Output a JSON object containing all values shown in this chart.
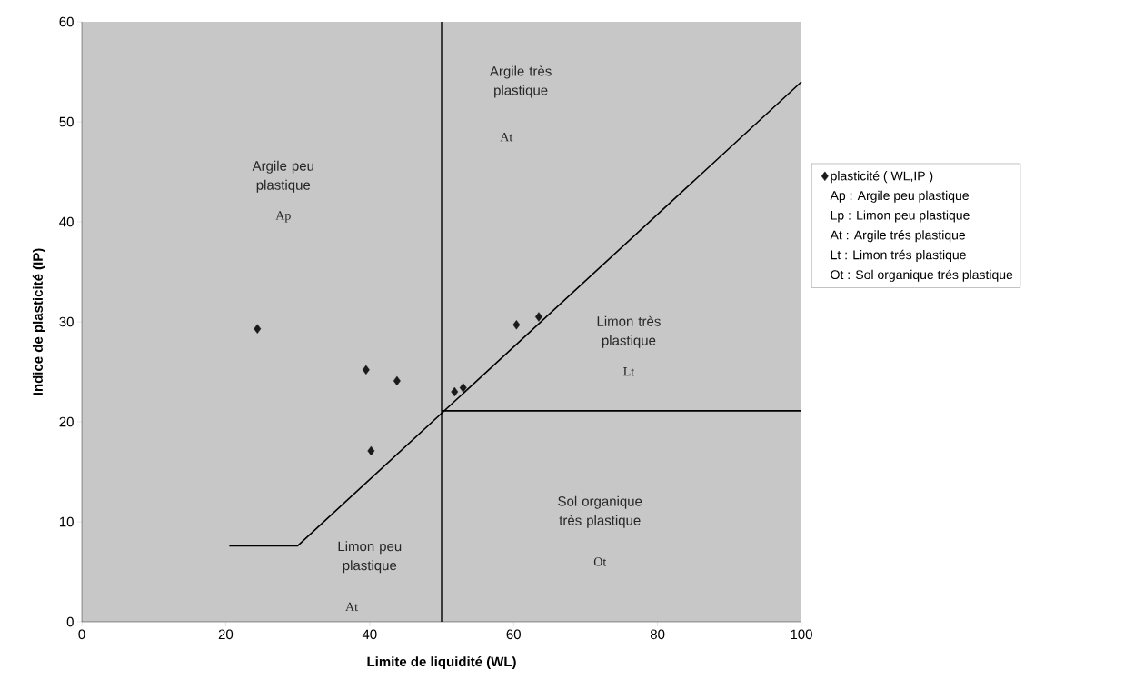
{
  "chart_data": {
    "type": "scatter",
    "xlabel": "Limite de liquidité (WL)",
    "ylabel": "Indice de plasticité (IP)",
    "xlim": [
      0,
      100
    ],
    "ylim": [
      0,
      60
    ],
    "xticks": [
      0,
      20,
      40,
      60,
      80,
      100
    ],
    "yticks": [
      0,
      10,
      20,
      30,
      40,
      50,
      60
    ],
    "marker": "diamond",
    "legend": "right",
    "grid": false,
    "ref_lines": [
      {
        "axis": "x",
        "value": 50,
        "color": "#000000"
      }
    ],
    "series": [
      {
        "name": "plasticité ( WL,IP )",
        "color": "#1a1a1a",
        "x": [
          24.4,
          39.5,
          43.8,
          40.2,
          51.8,
          53.0,
          60.4,
          63.5
        ],
        "values": [
          29.3,
          25.2,
          24.1,
          17.1,
          23.0,
          23.4,
          29.7,
          30.5
        ]
      },
      {
        "type": "line",
        "color": "#000000",
        "marker": "none",
        "x": [
          20.5,
          30,
          100
        ],
        "values": [
          7.6,
          7.6,
          54
        ]
      },
      {
        "type": "line",
        "color": "#000000",
        "marker": "none",
        "x": [
          50,
          100
        ],
        "values": [
          21.1,
          21.1
        ]
      }
    ],
    "annotations": [
      "Argile peu plastique",
      "Ap",
      "Argile très plastique",
      "At",
      "Limon très plastique",
      "Lt",
      "Sol organique très plastique",
      "Ot",
      "Limon peu plastique",
      "At",
      "Ap : Argile peu plastique",
      "Lp : Limon peu plastique",
      "At : Argile trés plastique",
      "Lt : Limon trés plastique",
      "Ot : Sol organique trés plastique"
    ]
  }
}
